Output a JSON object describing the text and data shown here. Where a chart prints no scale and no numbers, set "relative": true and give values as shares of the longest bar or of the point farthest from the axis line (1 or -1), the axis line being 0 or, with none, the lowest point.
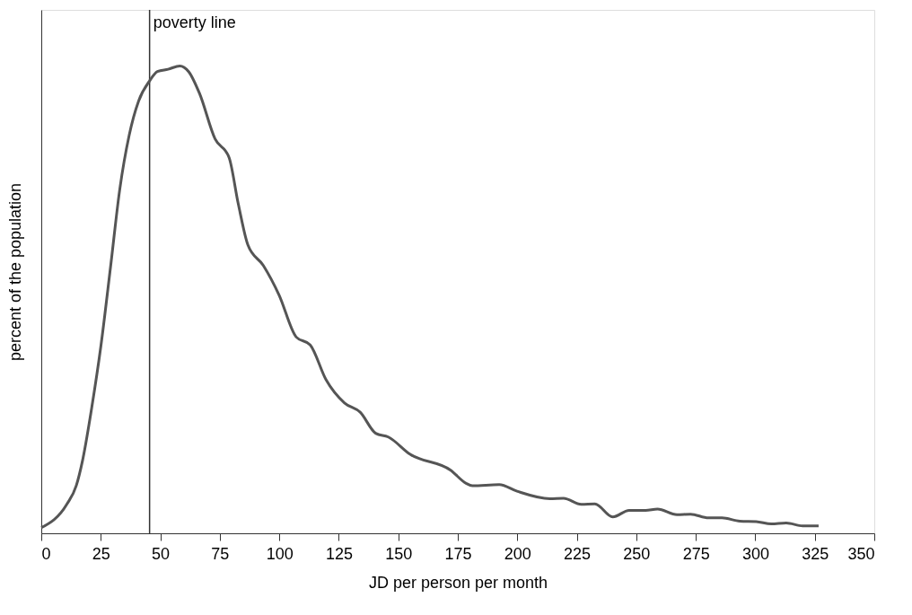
{
  "chart_data": {
    "type": "line",
    "relative": true,
    "xlabel": "JD per person per month",
    "ylabel": "percent of the population",
    "xlim": [
      0,
      350
    ],
    "xticks": [
      0,
      25,
      50,
      75,
      100,
      125,
      150,
      175,
      200,
      225,
      250,
      275,
      300,
      325,
      350
    ],
    "grid": false,
    "marker": "none",
    "line_style": "solid",
    "ref_lines": [
      {
        "axis": "x",
        "value": 45.5,
        "label": "poverty line",
        "color": "#333333"
      }
    ],
    "series": [
      {
        "color": "#555555",
        "x": [
          0,
          10.7,
          14.7,
          17.3,
          21.2,
          25.1,
          29.1,
          33.0,
          36.9,
          40.9,
          45.5,
          48.8,
          53.3,
          58.2,
          61.9,
          66.5,
          73.0,
          78.9,
          82.8,
          86.8,
          93.3,
          99.9,
          107.1,
          113.0,
          119.6,
          127.4,
          134.0,
          140.5,
          145.8,
          155.0,
          172.0,
          178.5,
          181.1,
          192.4,
          199.9,
          213.7,
          219.4,
          226.9,
          232.6,
          240.1,
          247.0,
          253.9,
          258.9,
          267.1,
          272.8,
          280.3,
          286.0,
          293.5,
          300.4,
          306.7,
          313.0,
          319.9,
          326.6
        ],
        "values": [
          0.012,
          0.062,
          0.102,
          0.155,
          0.269,
          0.403,
          0.57,
          0.737,
          0.851,
          0.925,
          0.968,
          0.988,
          0.993,
          1.0,
          0.988,
          0.941,
          0.844,
          0.804,
          0.704,
          0.617,
          0.573,
          0.51,
          0.42,
          0.403,
          0.329,
          0.279,
          0.259,
          0.214,
          0.206,
          0.169,
          0.135,
          0.107,
          0.102,
          0.104,
          0.09,
          0.074,
          0.075,
          0.062,
          0.063,
          0.035,
          0.049,
          0.049,
          0.052,
          0.04,
          0.041,
          0.033,
          0.033,
          0.026,
          0.025,
          0.02,
          0.022,
          0.016,
          0.016
        ]
      }
    ]
  }
}
